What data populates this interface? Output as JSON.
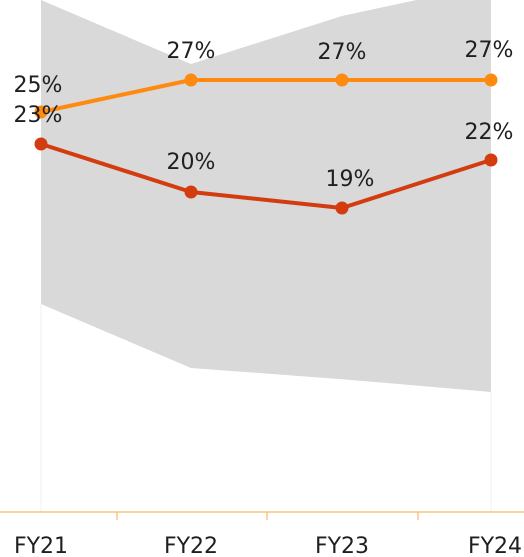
{
  "chart_data": {
    "type": "line",
    "categories": [
      "FY21",
      "FY22",
      "FY23",
      "FY24"
    ],
    "x_tick_labels": [
      "FY21",
      "FY22",
      "FY23",
      "FY24"
    ],
    "series": [
      {
        "values": [
          25,
          27,
          27,
          27
        ],
        "labels": [
          "25%",
          "27%",
          "27%",
          "27%"
        ],
        "color": "#ff8a12"
      },
      {
        "values": [
          23,
          20,
          19,
          22
        ],
        "labels": [
          "23%",
          "20%",
          "19%",
          "22%"
        ],
        "color": "#d23c0f"
      }
    ],
    "range_band": {
      "upper": [
        32,
        28,
        31,
        33
      ],
      "lower": [
        13,
        9,
        8.3,
        7.5
      ],
      "color": "#d9d9d9"
    },
    "ylim": [
      0,
      32
    ],
    "axis_color": "#f5b96e",
    "grid": false,
    "legend": "none",
    "title": "",
    "xlabel": "",
    "ylabel": ""
  }
}
